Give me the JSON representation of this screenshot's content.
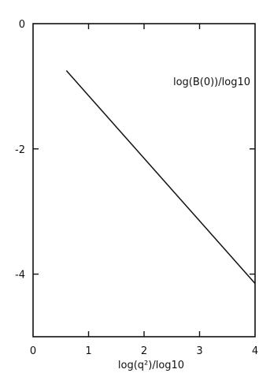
{
  "chart_data": {
    "type": "line",
    "title": "",
    "xlabel": "log(q²)/log10",
    "ylabel": "",
    "xlim": [
      0,
      4
    ],
    "ylim": [
      -5,
      0
    ],
    "xticks": [
      0,
      1,
      2,
      3,
      4
    ],
    "yticks": [
      0,
      -2,
      -4
    ],
    "xtick_labels": [
      "0",
      "1",
      "2",
      "3",
      "4"
    ],
    "ytick_labels": [
      "0",
      "-2",
      "-4"
    ],
    "grid": false,
    "annotation": "log(B(0))/log10",
    "series": [
      {
        "x": [
          0.6,
          4.0
        ],
        "y": [
          -0.75,
          -4.15
        ]
      }
    ]
  }
}
